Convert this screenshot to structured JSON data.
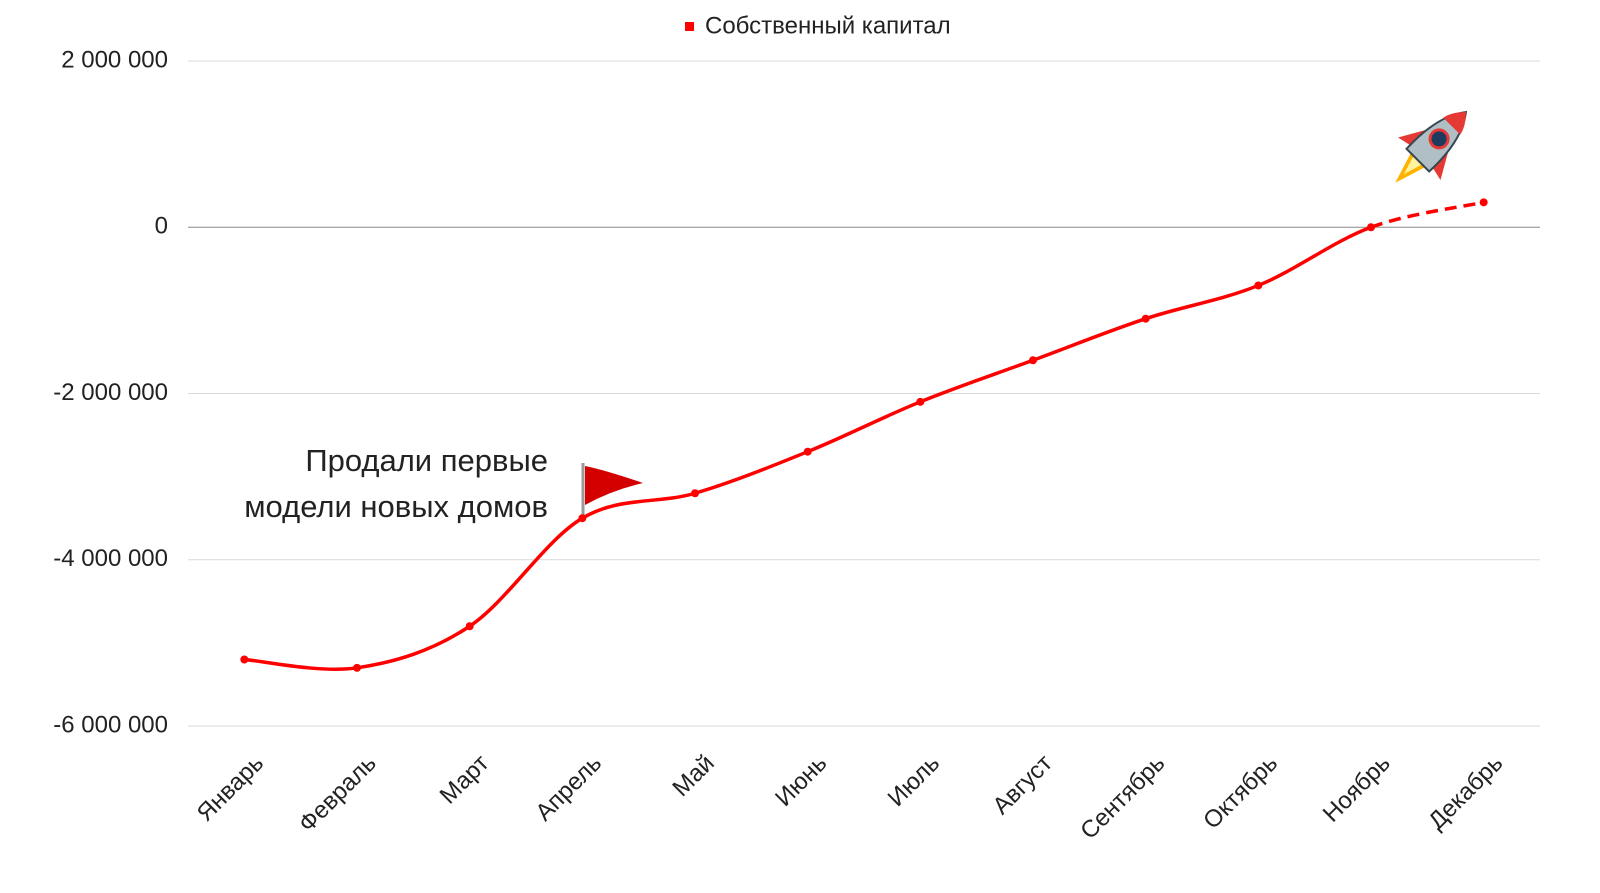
{
  "chart_data": {
    "type": "line",
    "legend": "top",
    "annotation": [
      "Продали первые",
      "модели новых домов"
    ],
    "categories": [
      "Январь",
      "Февраль",
      "Март",
      "Апрель",
      "Май",
      "Июнь",
      "Июль",
      "Август",
      "Сентябрь",
      "Октябрь",
      "Ноябрь",
      "Декабрь"
    ],
    "series": [
      {
        "name": "Собственный капитал",
        "color": "#ff0000",
        "values": [
          -5200000,
          -5300000,
          -4800000,
          -3500000,
          -3200000,
          -2700000,
          -2100000,
          -1600000,
          -1100000,
          -700000,
          0,
          300000
        ],
        "dashed_from_index": 10
      }
    ],
    "ylim": [
      -6000000,
      2000000
    ],
    "yticks": [
      {
        "value": -6000000,
        "label": "-6 000 000"
      },
      {
        "value": -4000000,
        "label": "-4 000 000"
      },
      {
        "value": -2000000,
        "label": "-2 000 000"
      },
      0,
      {
        "value": 2000000,
        "label": "2 000 000"
      }
    ],
    "grid": true
  }
}
